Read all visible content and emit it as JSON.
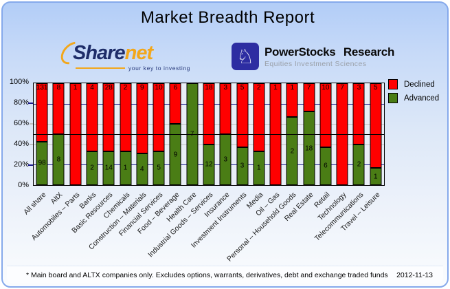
{
  "title": "Market Breadth Report",
  "logos": {
    "sharenet": {
      "name_part1": "Share",
      "name_part2": "net",
      "tagline": "your key to investing",
      "accent_color": "#f2a71b",
      "navy_color": "#1e2d69"
    },
    "powerstocks": {
      "name": "PowerStocks Research",
      "subtitle": "Equities Investment Sciences",
      "icon": "knight-chess-icon",
      "badge_color": "#2d2da2"
    }
  },
  "legend": {
    "declined_label": "Declined",
    "advanced_label": "Advanced"
  },
  "footer": {
    "note": "* Main board and ALTX companies only. Excludes options, warrants, derivatives, debt and exchange traded funds",
    "date": "2012-11-13"
  },
  "colors": {
    "declined": "#ff0000",
    "advanced": "#4a7d15",
    "grid_navy": "#1a1a8c",
    "grid_gray": "#c0c0c0",
    "reference_line": "#000000",
    "plot_background": "#e9eef6"
  },
  "chart_data": {
    "type": "bar",
    "stacked": true,
    "stack_mode": "percent",
    "title": "Market Breadth Report",
    "ylabel": "",
    "xlabel": "",
    "ylim": [
      0,
      100
    ],
    "yticks": [
      "100%",
      "80%",
      "60%",
      "40%",
      "20%",
      "0%"
    ],
    "reference_line_pct": 50,
    "legend_position": "top-right",
    "categories": [
      "All share",
      "AltX",
      "Automobiles – Parts",
      "Banks",
      "Basic Resources",
      "Chemicals",
      "Construction – Materials",
      "Financial Services",
      "Food – Beverage",
      "Health Care",
      "Industrial Goods – Services",
      "Insurance",
      "Investment Instruments",
      "Media",
      "Oil – Gas",
      "Personal – Household Goods",
      "Real Estate",
      "Retail",
      "Technology",
      "Telecommunications",
      "Travel – Leisure"
    ],
    "series": [
      {
        "name": "Declined",
        "color": "#ff0000",
        "values": [
          131,
          8,
          1,
          4,
          28,
          2,
          9,
          10,
          6,
          0,
          18,
          3,
          5,
          2,
          1,
          1,
          7,
          10,
          7,
          3,
          5
        ]
      },
      {
        "name": "Advanced",
        "color": "#4a7d15",
        "values": [
          98,
          8,
          0,
          2,
          14,
          1,
          4,
          5,
          9,
          7,
          12,
          3,
          3,
          1,
          0,
          2,
          18,
          6,
          0,
          2,
          1
        ]
      }
    ]
  }
}
